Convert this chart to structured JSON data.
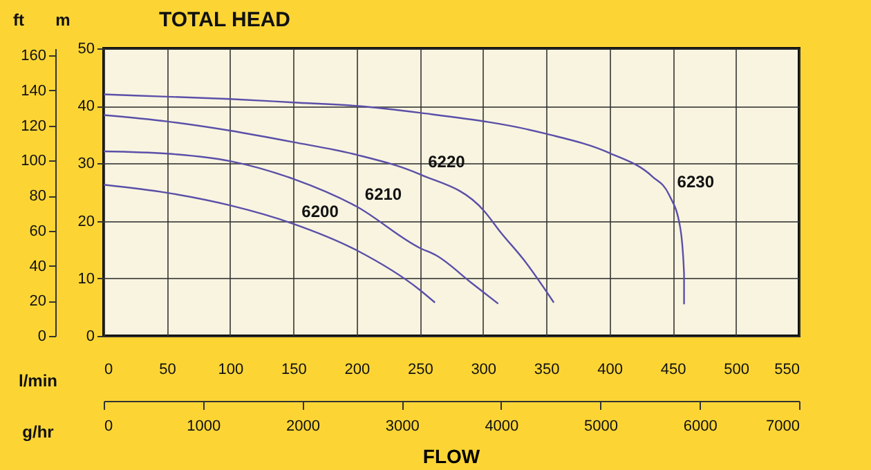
{
  "chart_data": {
    "type": "line",
    "title": "TOTAL HEAD",
    "xlabel": "l/min",
    "x2label": "g/hr",
    "ylabel": "m",
    "y2label": "ft",
    "annotations": [
      "FLOW"
    ],
    "xlim": [
      0,
      550
    ],
    "xticks": [
      0,
      50,
      100,
      150,
      200,
      250,
      300,
      350,
      400,
      450,
      500,
      550
    ],
    "x2lim": [
      0,
      7000
    ],
    "x2ticks": [
      0,
      1000,
      2000,
      3000,
      4000,
      5000,
      6000,
      7000
    ],
    "ylim": [
      0,
      50
    ],
    "yticks": [
      0,
      10,
      20,
      30,
      40,
      50
    ],
    "y2lim": [
      0,
      164
    ],
    "y2ticks": [
      0,
      20,
      40,
      60,
      80,
      100,
      120,
      140,
      160
    ],
    "grid": true,
    "legend": false,
    "marker": "none",
    "line_style": "solid",
    "series": [
      {
        "name": "6200",
        "color": "#5b4fa8",
        "x": [
          0,
          50,
          100,
          150,
          200,
          250,
          262
        ],
        "values": [
          26.3,
          24.9,
          22.7,
          19.5,
          14.9,
          8,
          5.8
        ]
      },
      {
        "name": "6210",
        "color": "#5b4fa8",
        "x": [
          0,
          50,
          100,
          150,
          200,
          250,
          263,
          291,
          312
        ],
        "values": [
          32.1,
          31.7,
          30.4,
          27.3,
          22.5,
          15.3,
          14,
          9.2,
          5.6
        ]
      },
      {
        "name": "6220",
        "color": "#5b4fa8",
        "x": [
          0,
          50,
          100,
          150,
          200,
          250,
          301,
          314,
          332,
          356
        ],
        "values": [
          38.4,
          37.3,
          35.7,
          33.7,
          31.5,
          28.1,
          21.7,
          18,
          13.3,
          5.8
        ]
      },
      {
        "name": "6230",
        "color": "#5b4fa8",
        "x": [
          0,
          50,
          100,
          150,
          200,
          250,
          349,
          400,
          434,
          447,
          456,
          459,
          459
        ],
        "values": [
          42,
          41.6,
          41.2,
          40.6,
          40,
          38.8,
          35.2,
          31.8,
          27.7,
          24.6,
          18.8,
          10.8,
          5.5
        ]
      }
    ]
  }
}
